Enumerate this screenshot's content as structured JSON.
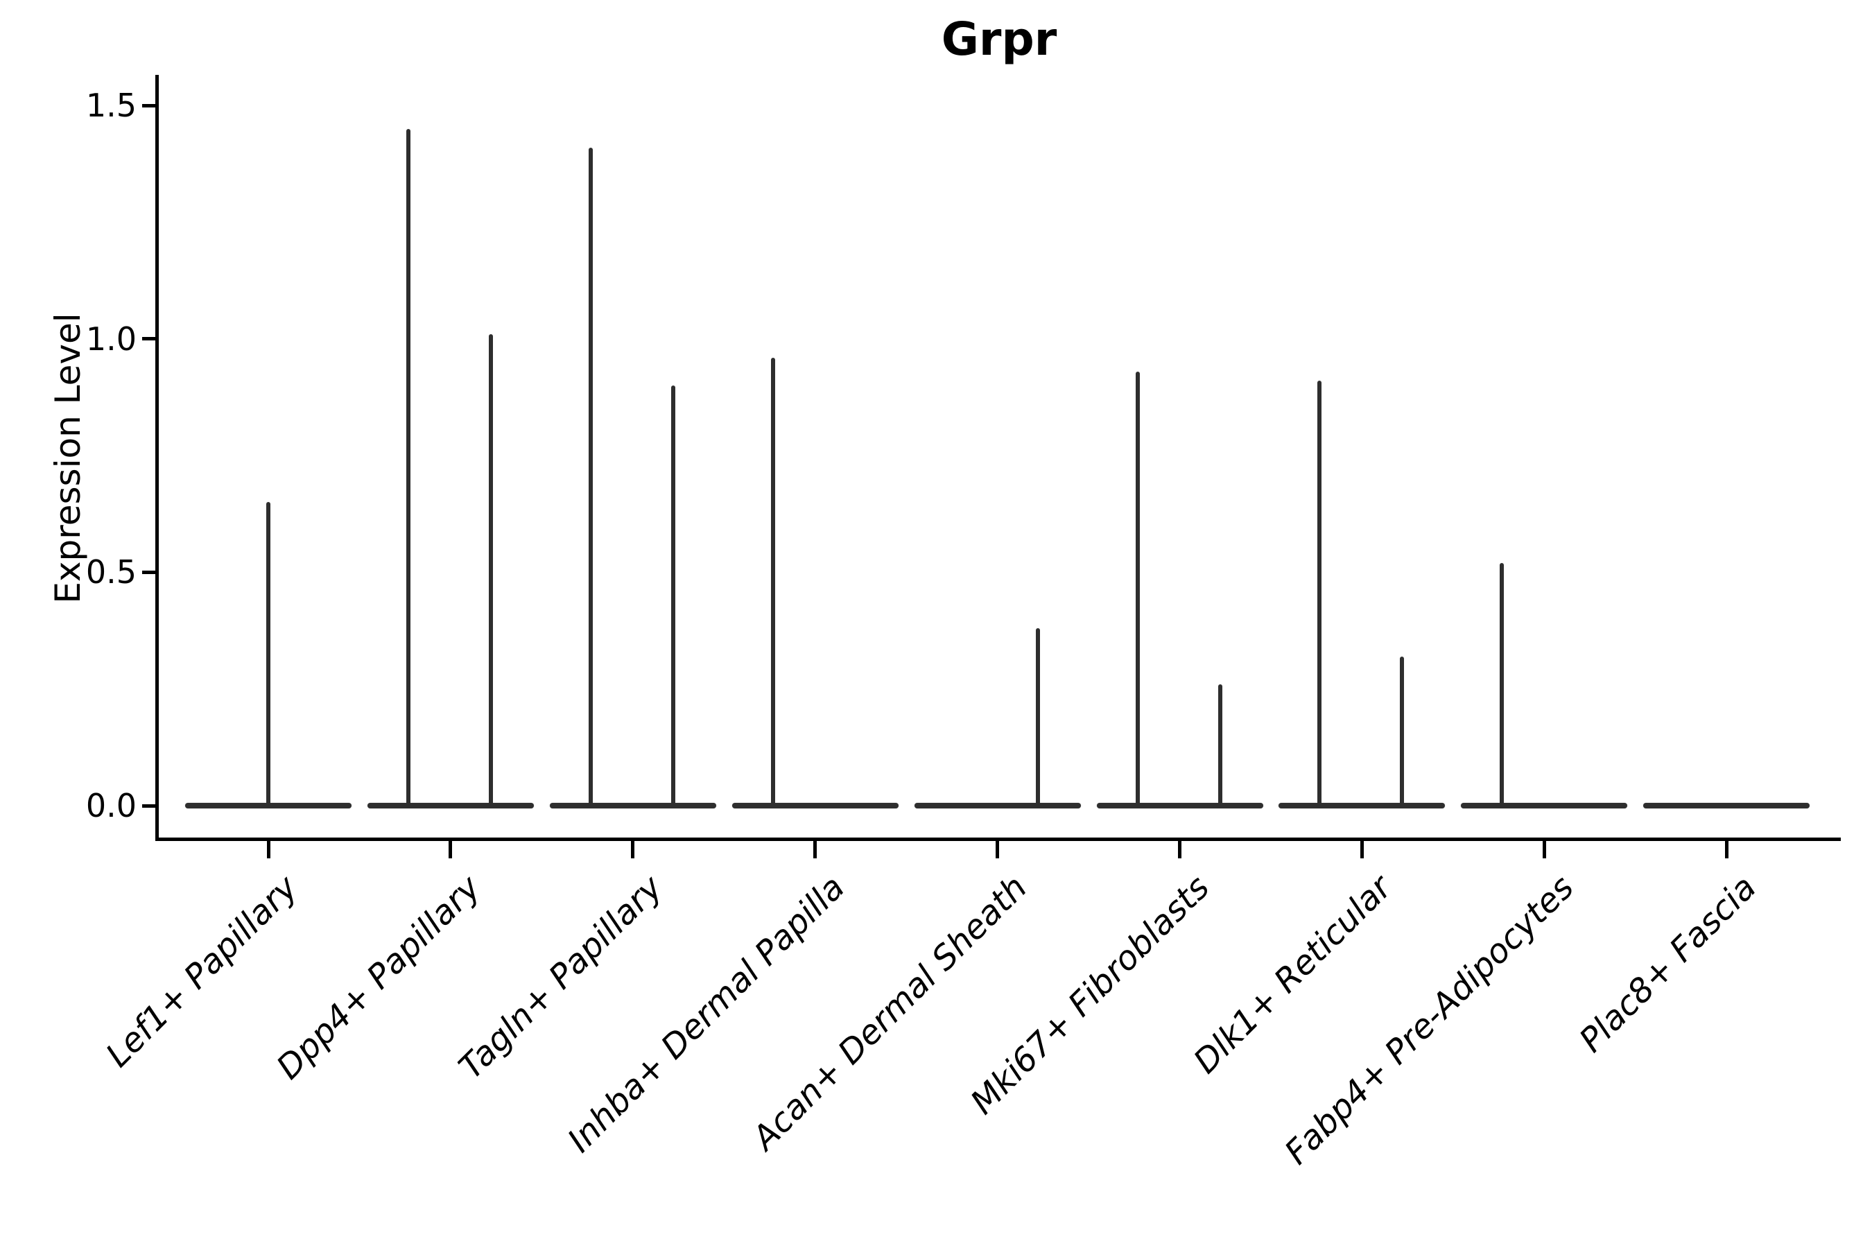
{
  "chart_data": {
    "type": "violin",
    "title": "Grpr",
    "xlabel": "",
    "ylabel": "Expression Level",
    "ylim": [
      0,
      1.5
    ],
    "yticks": [
      {
        "label": "0.0",
        "value": 0.0
      },
      {
        "label": "0.5",
        "value": 0.5
      },
      {
        "label": "1.0",
        "value": 1.0
      },
      {
        "label": "1.5",
        "value": 1.5
      }
    ],
    "grid": false,
    "legend": "none",
    "violin_color": "#2e2e2e",
    "categories": [
      {
        "label": "Lef1+ Papillary",
        "violins": [
          {
            "position": "center",
            "max": 0.65
          }
        ]
      },
      {
        "label": "Dpp4+ Papillary",
        "violins": [
          {
            "position": "left",
            "max": 1.45
          },
          {
            "position": "right",
            "max": 1.01
          }
        ]
      },
      {
        "label": "Tagln+ Papillary",
        "violins": [
          {
            "position": "left",
            "max": 1.41
          },
          {
            "position": "right",
            "max": 0.9
          }
        ]
      },
      {
        "label": "Inhba+ Dermal Papilla",
        "violins": [
          {
            "position": "left",
            "max": 0.96
          },
          {
            "position": "right",
            "max": 0.0
          }
        ]
      },
      {
        "label": "Acan+ Dermal Sheath",
        "violins": [
          {
            "position": "left",
            "max": 0.0
          },
          {
            "position": "right",
            "max": 0.38
          }
        ]
      },
      {
        "label": "Mki67+ Fibroblasts",
        "violins": [
          {
            "position": "left",
            "max": 0.93
          },
          {
            "position": "right",
            "max": 0.26
          }
        ]
      },
      {
        "label": "Dlk1+ Reticular",
        "violins": [
          {
            "position": "left",
            "max": 0.91
          },
          {
            "position": "right",
            "max": 0.32
          }
        ]
      },
      {
        "label": "Fabp4+ Pre-Adipocytes",
        "violins": [
          {
            "position": "left",
            "max": 0.52
          },
          {
            "position": "right",
            "max": 0.0
          }
        ]
      },
      {
        "label": "Plac8+ Fascia",
        "violins": [
          {
            "position": "center",
            "max": 0.0
          }
        ]
      }
    ]
  }
}
